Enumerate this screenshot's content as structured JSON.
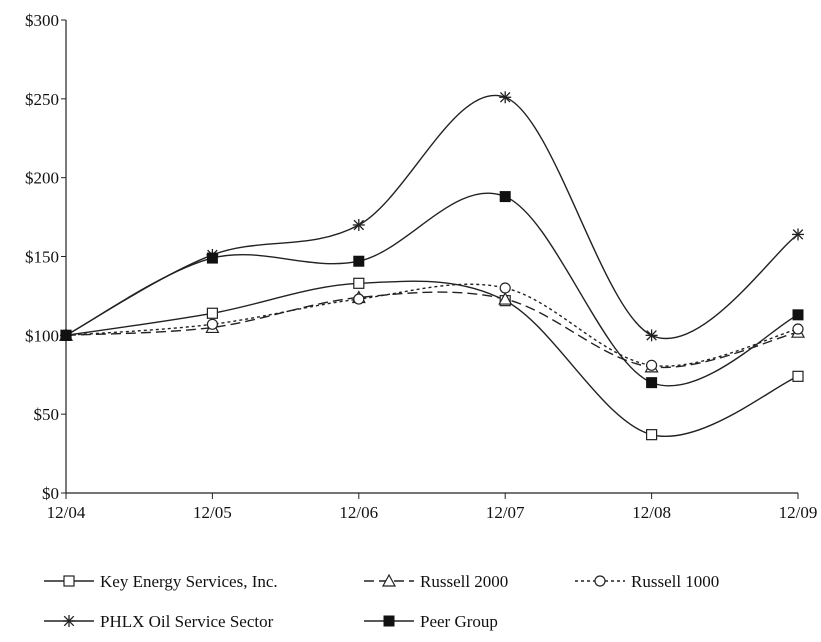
{
  "chart_data": {
    "type": "line",
    "categories": [
      "12/04",
      "12/05",
      "12/06",
      "12/07",
      "12/08",
      "12/09"
    ],
    "ylim": [
      0,
      300
    ],
    "yticks": [
      0,
      50,
      100,
      150,
      200,
      250,
      300
    ],
    "ytick_labels": [
      "$0",
      "$50",
      "$100",
      "$150",
      "$200",
      "$250",
      "$300"
    ],
    "grid": false,
    "legend_position": "bottom",
    "series": [
      {
        "name": "Key Energy Services, Inc.",
        "marker": "square-open",
        "line": "solid",
        "values": [
          100,
          114,
          133,
          122,
          37,
          74
        ]
      },
      {
        "name": "Russell 2000",
        "marker": "triangle-open",
        "line": "dashed",
        "values": [
          100,
          105,
          124,
          123,
          80,
          102
        ]
      },
      {
        "name": "Russell 1000",
        "marker": "circle-open",
        "line": "dotted",
        "values": [
          100,
          107,
          123,
          130,
          81,
          104
        ]
      },
      {
        "name": "PHLX Oil Service Sector",
        "marker": "asterisk",
        "line": "solid",
        "values": [
          100,
          151,
          170,
          251,
          100,
          164
        ]
      },
      {
        "name": "Peer Group",
        "marker": "square-filled",
        "line": "solid",
        "values": [
          100,
          149,
          147,
          188,
          70,
          113
        ]
      }
    ]
  }
}
